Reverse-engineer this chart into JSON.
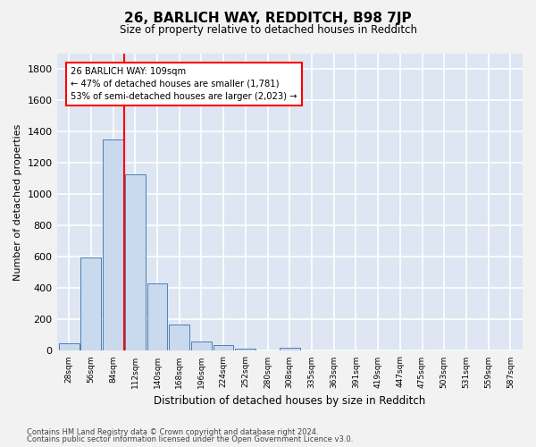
{
  "title": "26, BARLICH WAY, REDDITCH, B98 7JP",
  "subtitle": "Size of property relative to detached houses in Redditch",
  "xlabel": "Distribution of detached houses by size in Redditch",
  "ylabel": "Number of detached properties",
  "bar_color": "#c9d9ee",
  "bar_edge_color": "#5080b0",
  "plot_bg_color": "#dde6f2",
  "fig_bg_color": "#f2f2f2",
  "grid_color": "#ffffff",
  "bins": [
    "28sqm",
    "56sqm",
    "84sqm",
    "112sqm",
    "140sqm",
    "168sqm",
    "196sqm",
    "224sqm",
    "252sqm",
    "280sqm",
    "308sqm",
    "335sqm",
    "363sqm",
    "391sqm",
    "419sqm",
    "447sqm",
    "475sqm",
    "503sqm",
    "531sqm",
    "559sqm",
    "587sqm"
  ],
  "values": [
    50,
    595,
    1350,
    1130,
    430,
    170,
    60,
    35,
    15,
    0,
    20,
    0,
    0,
    0,
    0,
    0,
    0,
    0,
    0,
    0,
    0
  ],
  "property_bin_idx": 3,
  "annotation_title": "26 BARLICH WAY: 109sqm",
  "annotation_line1": "← 47% of detached houses are smaller (1,781)",
  "annotation_line2": "53% of semi-detached houses are larger (2,023) →",
  "ylim": [
    0,
    1900
  ],
  "yticks": [
    0,
    200,
    400,
    600,
    800,
    1000,
    1200,
    1400,
    1600,
    1800
  ],
  "footnote1": "Contains HM Land Registry data © Crown copyright and database right 2024.",
  "footnote2": "Contains public sector information licensed under the Open Government Licence v3.0."
}
